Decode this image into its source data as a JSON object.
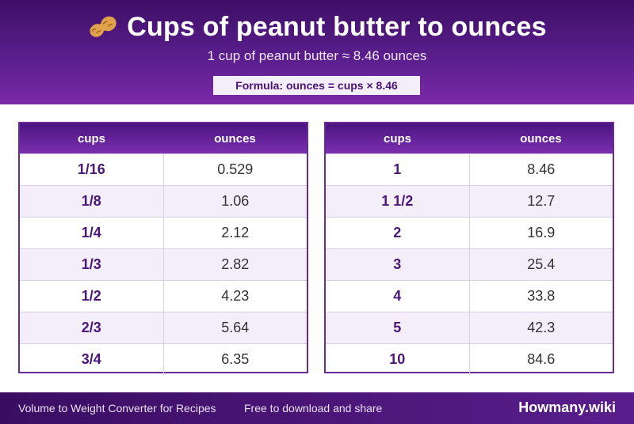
{
  "header": {
    "title": "Cups of peanut butter to ounces",
    "subtitle": "1 cup of peanut butter ≈ 8.46 ounces",
    "formula": "Formula: ounces = cups × 8.46",
    "icon": "peanut-icon"
  },
  "tables": {
    "left": {
      "headers": [
        "cups",
        "ounces"
      ],
      "rows": [
        {
          "cups": "1/16",
          "ounces": "0.529"
        },
        {
          "cups": "1/8",
          "ounces": "1.06"
        },
        {
          "cups": "1/4",
          "ounces": "2.12"
        },
        {
          "cups": "1/3",
          "ounces": "2.82"
        },
        {
          "cups": "1/2",
          "ounces": "4.23"
        },
        {
          "cups": "2/3",
          "ounces": "5.64"
        },
        {
          "cups": "3/4",
          "ounces": "6.35"
        }
      ]
    },
    "right": {
      "headers": [
        "cups",
        "ounces"
      ],
      "rows": [
        {
          "cups": "1",
          "ounces": "8.46"
        },
        {
          "cups": "1 1/2",
          "ounces": "12.7"
        },
        {
          "cups": "2",
          "ounces": "16.9"
        },
        {
          "cups": "3",
          "ounces": "25.4"
        },
        {
          "cups": "4",
          "ounces": "33.8"
        },
        {
          "cups": "5",
          "ounces": "42.3"
        },
        {
          "cups": "10",
          "ounces": "84.6"
        }
      ]
    }
  },
  "footer": {
    "left_text": "Volume to Weight Converter for Recipes",
    "middle_text": "Free to download and share",
    "brand": "Howmany.wiki"
  },
  "colors": {
    "brand_purple": "#5a1e8c",
    "accent_text": "#4b1777"
  }
}
